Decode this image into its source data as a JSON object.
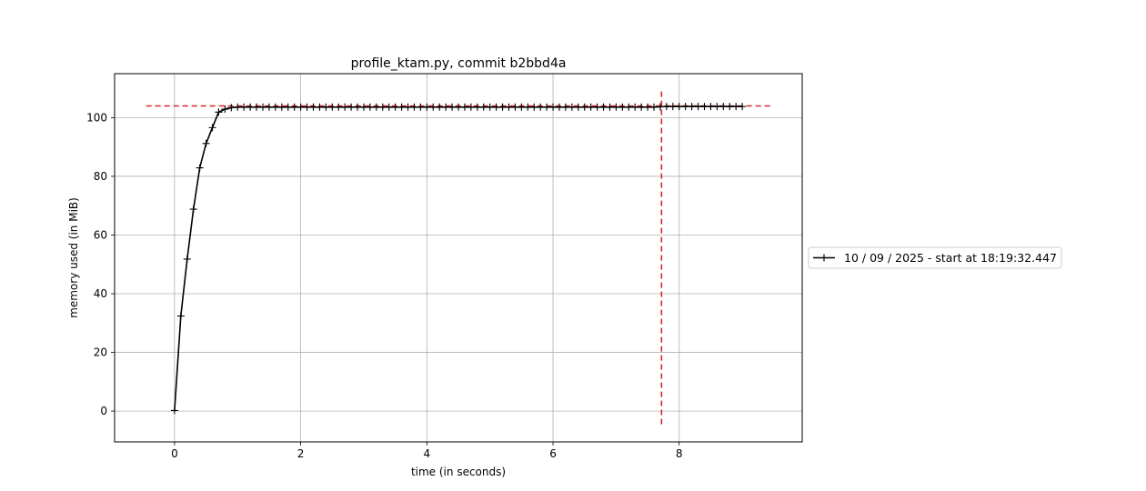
{
  "chart_data": {
    "type": "line",
    "title": "profile_ktam.py, commit b2bbd4a",
    "xlabel": "time (in seconds)",
    "ylabel": "memory used (in MiB)",
    "xlim": [
      -0.95,
      9.95
    ],
    "ylim": [
      -10.5,
      115
    ],
    "xticks": [
      0,
      2,
      4,
      6,
      8
    ],
    "yticks": [
      0,
      20,
      40,
      60,
      80,
      100
    ],
    "grid": true,
    "legend_position": "center-right outside plot",
    "series": [
      {
        "name": "10 / 09 / 2025 - start at 18:19:32.447",
        "color": "#000000",
        "marker": "+",
        "x": [
          0.0,
          0.1,
          0.2,
          0.3,
          0.4,
          0.5,
          0.6,
          0.7,
          0.8,
          0.9,
          1.0,
          1.1,
          1.2,
          1.3,
          1.4,
          1.5,
          1.6,
          1.7,
          1.8,
          1.9,
          2.0,
          2.1,
          2.2,
          2.3,
          2.4,
          2.5,
          2.6,
          2.7,
          2.8,
          2.9,
          3.0,
          3.1,
          3.2,
          3.3,
          3.4,
          3.5,
          3.6,
          3.7,
          3.8,
          3.9,
          4.0,
          4.1,
          4.2,
          4.3,
          4.4,
          4.5,
          4.6,
          4.7,
          4.8,
          4.9,
          5.0,
          5.1,
          5.2,
          5.3,
          5.4,
          5.5,
          5.6,
          5.7,
          5.8,
          5.9,
          6.0,
          6.1,
          6.2,
          6.3,
          6.4,
          6.5,
          6.6,
          6.7,
          6.8,
          6.9,
          7.0,
          7.1,
          7.2,
          7.3,
          7.4,
          7.5,
          7.6,
          7.7,
          7.8,
          7.9,
          8.0,
          8.1,
          8.2,
          8.3,
          8.4,
          8.5,
          8.6,
          8.7,
          8.8,
          8.9,
          9.0
        ],
        "y": [
          0.2,
          32.4,
          51.8,
          68.8,
          82.9,
          91.2,
          96.6,
          101.9,
          102.9,
          103.4,
          103.6,
          103.6,
          103.6,
          103.6,
          103.6,
          103.6,
          103.6,
          103.6,
          103.6,
          103.6,
          103.6,
          103.6,
          103.6,
          103.6,
          103.6,
          103.6,
          103.6,
          103.6,
          103.6,
          103.6,
          103.6,
          103.6,
          103.6,
          103.6,
          103.6,
          103.6,
          103.6,
          103.6,
          103.6,
          103.6,
          103.6,
          103.6,
          103.6,
          103.6,
          103.6,
          103.6,
          103.6,
          103.6,
          103.6,
          103.6,
          103.6,
          103.6,
          103.6,
          103.6,
          103.6,
          103.6,
          103.6,
          103.6,
          103.6,
          103.6,
          103.6,
          103.6,
          103.6,
          103.6,
          103.6,
          103.6,
          103.6,
          103.6,
          103.6,
          103.6,
          103.6,
          103.6,
          103.6,
          103.6,
          103.6,
          103.6,
          103.6,
          103.7,
          103.8,
          103.8,
          103.8,
          103.8,
          103.8,
          103.8,
          103.8,
          103.8,
          103.8,
          103.8,
          103.8,
          103.8,
          103.8
        ]
      }
    ],
    "reference_lines": [
      {
        "orientation": "horizontal",
        "y": 104.0,
        "x_range": [
          -0.45,
          9.45
        ],
        "color": "#d62728",
        "style": "dashed"
      },
      {
        "orientation": "vertical",
        "x": 7.72,
        "y_range": [
          -4.5,
          109.5
        ],
        "color": "#d62728",
        "style": "dashed"
      }
    ]
  }
}
